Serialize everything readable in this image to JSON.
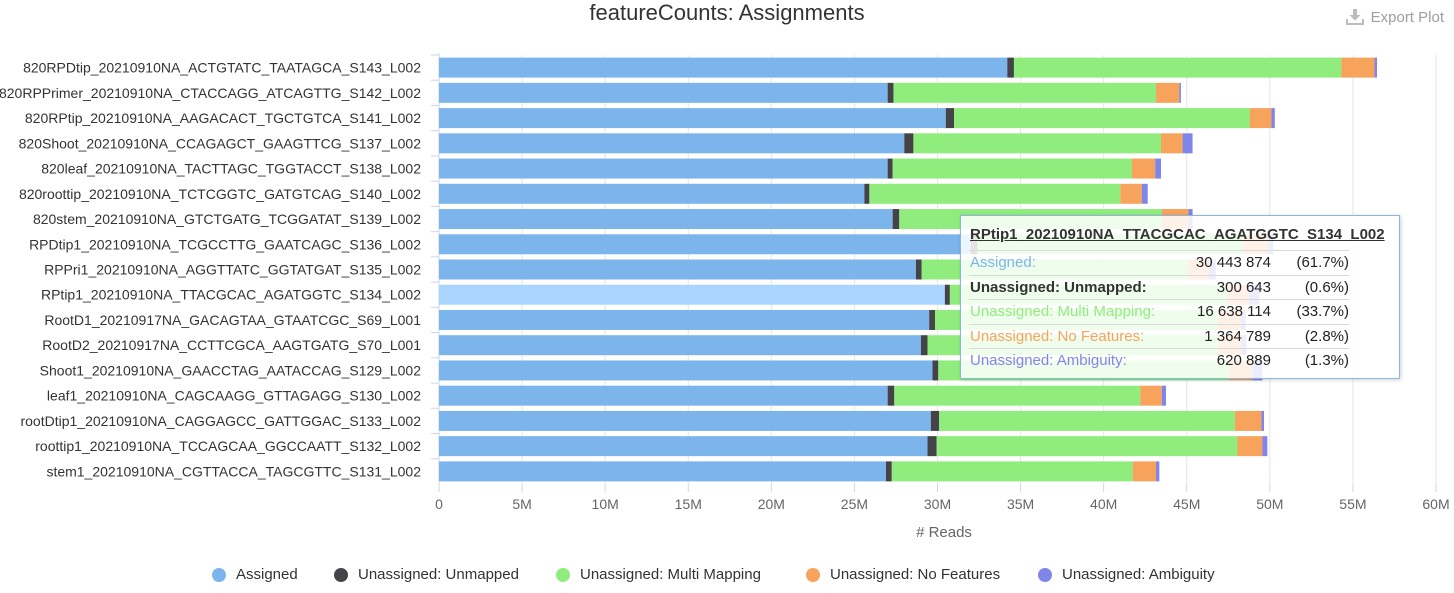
{
  "title": "featureCounts: Assignments",
  "export": {
    "label": "Export Plot",
    "icon": "download-icon"
  },
  "colors": {
    "assigned": "#7cb5ec",
    "unmapped": "#434348",
    "multi": "#90ed7d",
    "nofeat": "#f7a35c",
    "ambig": "#8085e9",
    "highlight": "#a9d5ff",
    "grid": "#e6e6e6",
    "axis": "#ccd6eb",
    "text": "#333333",
    "tick": "#666666"
  },
  "chart_data": {
    "type": "bar",
    "orientation": "horizontal",
    "stacked": true,
    "title": "featureCounts: Assignments",
    "xlabel": "# Reads",
    "ylabel": "",
    "xlim": [
      0,
      60000000
    ],
    "xticks": [
      {
        "v": 0,
        "label": "0"
      },
      {
        "v": 5000000,
        "label": "5M"
      },
      {
        "v": 10000000,
        "label": "10M"
      },
      {
        "v": 15000000,
        "label": "15M"
      },
      {
        "v": 20000000,
        "label": "20M"
      },
      {
        "v": 25000000,
        "label": "25M"
      },
      {
        "v": 30000000,
        "label": "30M"
      },
      {
        "v": 35000000,
        "label": "35M"
      },
      {
        "v": 40000000,
        "label": "40M"
      },
      {
        "v": 45000000,
        "label": "45M"
      },
      {
        "v": 50000000,
        "label": "50M"
      },
      {
        "v": 55000000,
        "label": "55M"
      },
      {
        "v": 60000000,
        "label": "60M"
      }
    ],
    "grid": true,
    "legend_position": "bottom",
    "highlighted_category": "RPtip1_20210910NA_TTACGCAC_AGATGGTC_S134_L002",
    "categories": [
      "820RPDtip_20210910NA_ACTGTATC_TAATAGCA_S143_L002",
      "820RPPrimer_20210910NA_CTACCAGG_ATCAGTTG_S142_L002",
      "820RPtip_20210910NA_AAGACACT_TGCTGTCA_S141_L002",
      "820Shoot_20210910NA_CCAGAGCT_GAAGTTCG_S137_L002",
      "820leaf_20210910NA_TACTTAGC_TGGTACCT_S138_L002",
      "820roottip_20210910NA_TCTCGGTC_GATGTCAG_S140_L002",
      "820stem_20210910NA_GTCTGATG_TCGGATAT_S139_L002",
      "RPDtip1_20210910NA_TCGCCTTG_GAATCAGC_S136_L002",
      "RPPri1_20210910NA_AGGTTATC_GGTATGAT_S135_L002",
      "RPtip1_20210910NA_TTACGCAC_AGATGGTC_S134_L002",
      "RootD1_20210917NA_GACAGTAA_GTAATCGC_S69_L001",
      "RootD2_20210917NA_CCTTCGCA_AAGTGATG_S70_L001",
      "Shoot1_20210910NA_GAACCTAG_AATACCAG_S129_L002",
      "leaf1_20210910NA_CAGCAAGG_GTTAGAGG_S130_L002",
      "rootDtip1_20210910NA_CAGGAGCC_GATTGGAC_S133_L002",
      "roottip1_20210910NA_TCCAGCAA_GGCCAATT_S132_L002",
      "stem1_20210910NA_CGTTACCA_TAGCGTTC_S131_L002"
    ],
    "series": [
      {
        "name": "Assigned",
        "color_key": "assigned",
        "values": [
          34200000,
          27000000,
          30500000,
          28000000,
          27000000,
          25600000,
          27300000,
          32000000,
          28700000,
          30443874,
          29500000,
          29000000,
          29700000,
          27000000,
          29600000,
          29400000,
          26900000
        ]
      },
      {
        "name": "Unassigned: Unmapped",
        "color_key": "unmapped",
        "values": [
          400000,
          350000,
          500000,
          550000,
          300000,
          300000,
          400000,
          400000,
          350000,
          300643,
          350000,
          400000,
          350000,
          400000,
          500000,
          550000,
          350000
        ]
      },
      {
        "name": "Unassigned: Multi Mapping",
        "color_key": "multi",
        "values": [
          19700000,
          15800000,
          17800000,
          14900000,
          14400000,
          15100000,
          15800000,
          16000000,
          16000000,
          16638114,
          17000000,
          17500000,
          17500000,
          14800000,
          17800000,
          18100000,
          14500000
        ]
      },
      {
        "name": "Unassigned: No Features",
        "color_key": "nofeat",
        "values": [
          2000000,
          1400000,
          1300000,
          1300000,
          1400000,
          1300000,
          1600000,
          1500000,
          1300000,
          1364789,
          1400000,
          1400000,
          1400000,
          1300000,
          1600000,
          1500000,
          1400000
        ]
      },
      {
        "name": "Unassigned: Ambiguity",
        "color_key": "ambig",
        "values": [
          150000,
          100000,
          200000,
          600000,
          350000,
          350000,
          250000,
          300000,
          400000,
          620889,
          300000,
          300000,
          600000,
          250000,
          150000,
          300000,
          200000
        ]
      }
    ]
  },
  "tooltip": {
    "title": "RPtip1_20210910NA_TTACGCAC_AGATGGTC_S134_L002",
    "rows": [
      {
        "name": "Assigned:",
        "value": "30 443 874",
        "pct": "(61.7%)",
        "color_key": "assigned"
      },
      {
        "name": "Unassigned: Unmapped:",
        "value": "300 643",
        "pct": "(0.6%)",
        "color_key": "unmapped"
      },
      {
        "name": "Unassigned: Multi Mapping:",
        "value": "16 638 114",
        "pct": "(33.7%)",
        "color_key": "multi"
      },
      {
        "name": "Unassigned: No Features:",
        "value": "1 364 789",
        "pct": "(2.8%)",
        "color_key": "nofeat"
      },
      {
        "name": "Unassigned: Ambiguity:",
        "value": "620 889",
        "pct": "(1.3%)",
        "color_key": "ambig"
      }
    ]
  },
  "legend": [
    {
      "label": "Assigned",
      "color_key": "assigned"
    },
    {
      "label": "Unassigned: Unmapped",
      "color_key": "unmapped"
    },
    {
      "label": "Unassigned: Multi Mapping",
      "color_key": "multi"
    },
    {
      "label": "Unassigned: No Features",
      "color_key": "nofeat"
    },
    {
      "label": "Unassigned: Ambiguity",
      "color_key": "ambig"
    }
  ]
}
